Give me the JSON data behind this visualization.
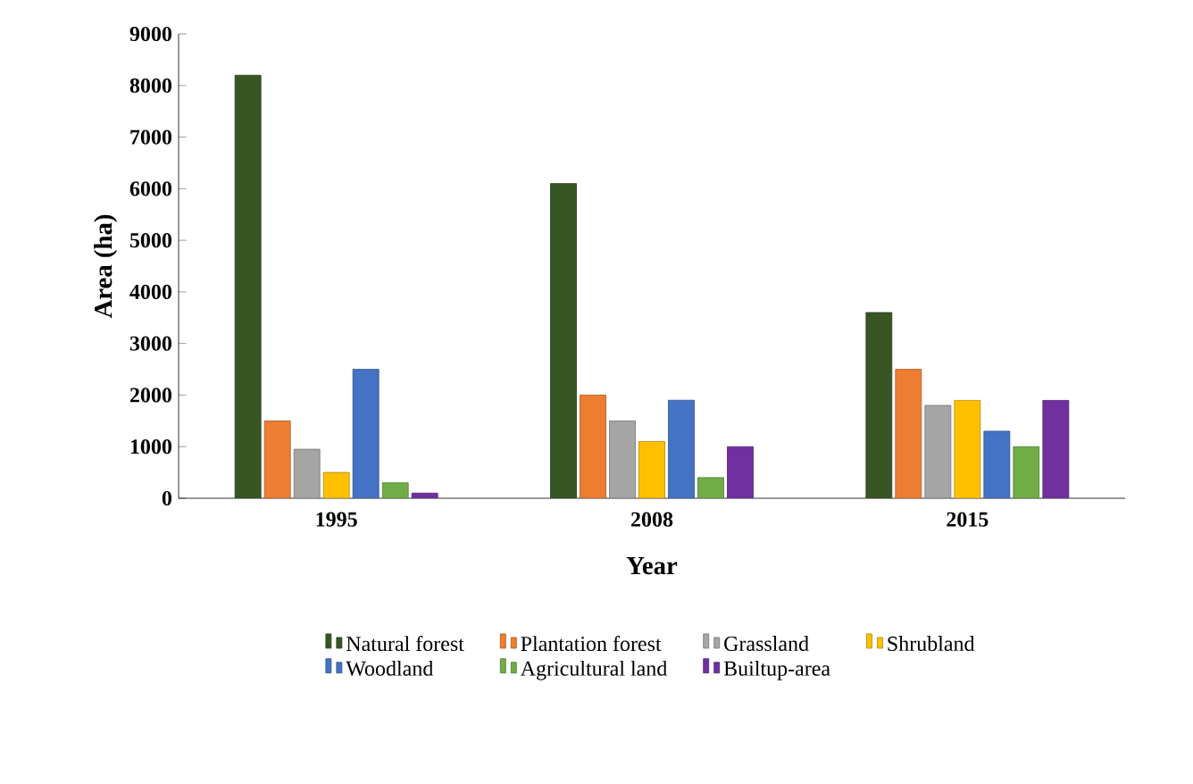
{
  "chart_data": {
    "type": "bar",
    "xlabel": "Year",
    "ylabel": "Area (ha)",
    "categories": [
      "1995",
      "2008",
      "2015"
    ],
    "series": [
      {
        "name": "Natural forest",
        "color": "#375623",
        "values": [
          8200,
          6100,
          3600
        ]
      },
      {
        "name": "Plantation forest",
        "color": "#ed7d31",
        "values": [
          1500,
          2000,
          2500
        ]
      },
      {
        "name": "Grassland",
        "color": "#a5a5a5",
        "values": [
          950,
          1500,
          1800
        ]
      },
      {
        "name": "Shrubland",
        "color": "#ffc000",
        "values": [
          500,
          1100,
          1900
        ]
      },
      {
        "name": "Woodland",
        "color": "#4472c4",
        "values": [
          2500,
          1900,
          1300
        ]
      },
      {
        "name": "Agricultural land",
        "color": "#70ad47",
        "values": [
          300,
          400,
          1000
        ]
      },
      {
        "name": "Builtup-area",
        "color": "#7030a0",
        "values": [
          100,
          1000,
          1900
        ]
      }
    ],
    "ylim": [
      0,
      9000
    ],
    "yticks": [
      0,
      1000,
      2000,
      3000,
      4000,
      5000,
      6000,
      7000,
      8000,
      9000
    ],
    "legend": "bottom",
    "grid": false
  }
}
